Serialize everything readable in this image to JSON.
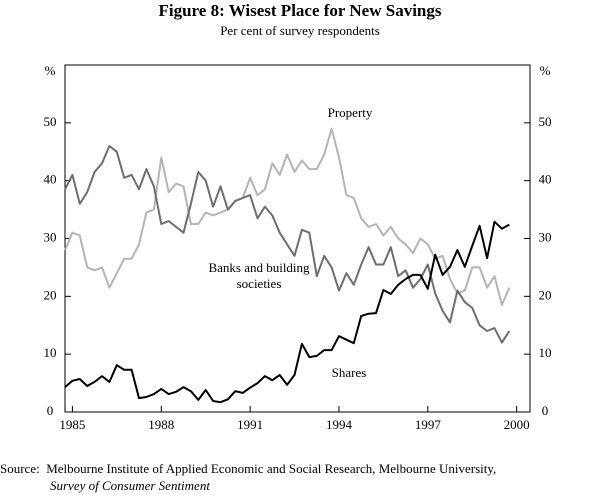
{
  "chart_data": {
    "type": "line",
    "title": "Figure 8: Wisest Place for New Savings",
    "subtitle": "Per cent of survey respondents",
    "y_unit": "%",
    "x": [
      1984.75,
      1985,
      1985.25,
      1985.5,
      1985.75,
      1986,
      1986.25,
      1986.5,
      1986.75,
      1987,
      1987.25,
      1987.5,
      1987.75,
      1988,
      1988.25,
      1988.5,
      1988.75,
      1989,
      1989.25,
      1989.5,
      1989.75,
      1990,
      1990.25,
      1990.5,
      1990.75,
      1991,
      1991.25,
      1991.5,
      1991.75,
      1992,
      1992.25,
      1992.5,
      1992.75,
      1993,
      1993.25,
      1993.5,
      1993.75,
      1994,
      1994.25,
      1994.5,
      1994.75,
      1995,
      1995.25,
      1995.5,
      1995.75,
      1996,
      1996.25,
      1996.5,
      1996.75,
      1997,
      1997.25,
      1997.5,
      1997.75,
      1998,
      1998.25,
      1998.5,
      1998.75,
      1999,
      1999.25,
      1999.5,
      1999.75
    ],
    "series": [
      {
        "name": "Property",
        "color": "#b4b4b4",
        "values": [
          28,
          31,
          30.5,
          25,
          24.5,
          25,
          21.5,
          24,
          26.5,
          26.5,
          29,
          34.5,
          35,
          44,
          38,
          39.5,
          39,
          32.5,
          32.5,
          34.5,
          34,
          34.5,
          35,
          36.5,
          37,
          40.5,
          37.5,
          38.5,
          43,
          41,
          44.5,
          41.5,
          43.5,
          42,
          42,
          44.5,
          49,
          44,
          37.5,
          37,
          33.5,
          32,
          32.5,
          30.5,
          32,
          30,
          29,
          27.5,
          30,
          29,
          26.5,
          27,
          23,
          20.5,
          21,
          25,
          25,
          21.5,
          23.5,
          18.5,
          21.5
        ]
      },
      {
        "name": "Banks and building societies",
        "color": "#6e6e6e",
        "values": [
          38.5,
          41,
          36,
          38,
          41.5,
          43,
          46,
          45,
          40.5,
          41,
          38.5,
          42,
          39,
          32.5,
          33,
          32,
          31,
          36,
          41.5,
          40,
          35.5,
          39,
          35,
          36.5,
          37,
          37.5,
          33.5,
          35.5,
          34,
          31,
          29,
          27,
          31.5,
          31,
          23.5,
          27,
          25,
          21,
          24,
          22,
          25.5,
          28.5,
          25.5,
          25.5,
          28.5,
          23.5,
          24.5,
          21.5,
          23,
          25.5,
          20.5,
          17.5,
          15.5,
          21,
          19,
          18,
          15,
          14,
          14.5,
          12,
          14
        ]
      },
      {
        "name": "Shares",
        "color": "#000000",
        "values": [
          4.3,
          5.4,
          5.7,
          4.5,
          5.2,
          6.2,
          5.2,
          8.1,
          7.3,
          7.3,
          2.4,
          2.6,
          3.1,
          4.0,
          3.1,
          3.5,
          4.3,
          3.6,
          2.1,
          3.8,
          1.9,
          1.7,
          2.2,
          3.6,
          3.3,
          4.2,
          5.0,
          6.2,
          5.5,
          6.4,
          4.7,
          6.4,
          11.8,
          9.5,
          9.7,
          10.7,
          10.7,
          13.1,
          12.5,
          11.9,
          16.6,
          17.0,
          17.1,
          21.1,
          20.4,
          22.0,
          23.0,
          23.7,
          23.7,
          21.3,
          27.2,
          23.7,
          25.1,
          28.0,
          25.1,
          28.7,
          32.2,
          26.6,
          32.9,
          31.7,
          32.4
        ]
      }
    ],
    "xlim": [
      1984.75,
      2000.45
    ],
    "xticks": [
      1985,
      1988,
      1991,
      1994,
      1997,
      2000
    ],
    "ylim": [
      0,
      60
    ],
    "yticks": [
      0,
      10,
      20,
      30,
      40,
      50
    ],
    "source": {
      "label": "Source:",
      "text": "Melbourne Institute of Applied Economic and Social Research, Melbourne University,",
      "italic": "Survey of Consumer Sentiment"
    }
  }
}
